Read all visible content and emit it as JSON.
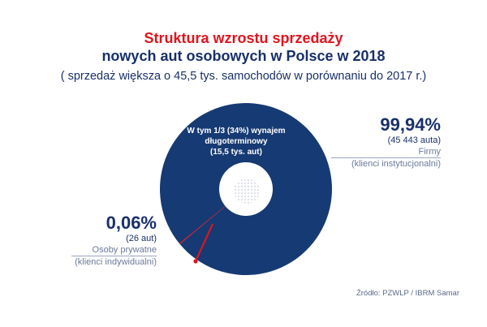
{
  "title_line1": "Struktura wzrostu sprzedaży",
  "title_line2": "nowych aut osobowych w Polsce w 2018",
  "subtitle": "( sprzedaż większa o 45,5 tys. samochodów w porównaniu do 2017 r.)",
  "colors": {
    "red": "#e0141e",
    "navy": "#18306a",
    "ring": "#163a73",
    "text_grey": "#6b7a99"
  },
  "chart_data": {
    "type": "pie",
    "title": "Struktura wzrostu sprzedaży nowych aut osobowych w Polsce w 2018",
    "series": [
      {
        "name": "Firmy (klienci instytucjonalni)",
        "percent": 99.94,
        "count": 45443,
        "percent_label": "99,94%",
        "count_label": "(45 443 auta)",
        "desc1": "Firmy",
        "desc2": "(klienci instytucjonalni)",
        "color": "#163a73"
      },
      {
        "name": "Osoby prywatne (klienci indywidualni)",
        "percent": 0.06,
        "count": 26,
        "percent_label": "0,06%",
        "count_label": "(26 aut)",
        "desc1": "Osoby prywatne",
        "desc2": "(klienci indywidualni)",
        "color": "#e0141e"
      }
    ],
    "annotation": [
      "W tym 1/3 (34%) wynajem",
      "długoterminowy",
      "(15,5 tys. aut)"
    ]
  },
  "source": "Źródło: PZWLP / IBRM Samar"
}
